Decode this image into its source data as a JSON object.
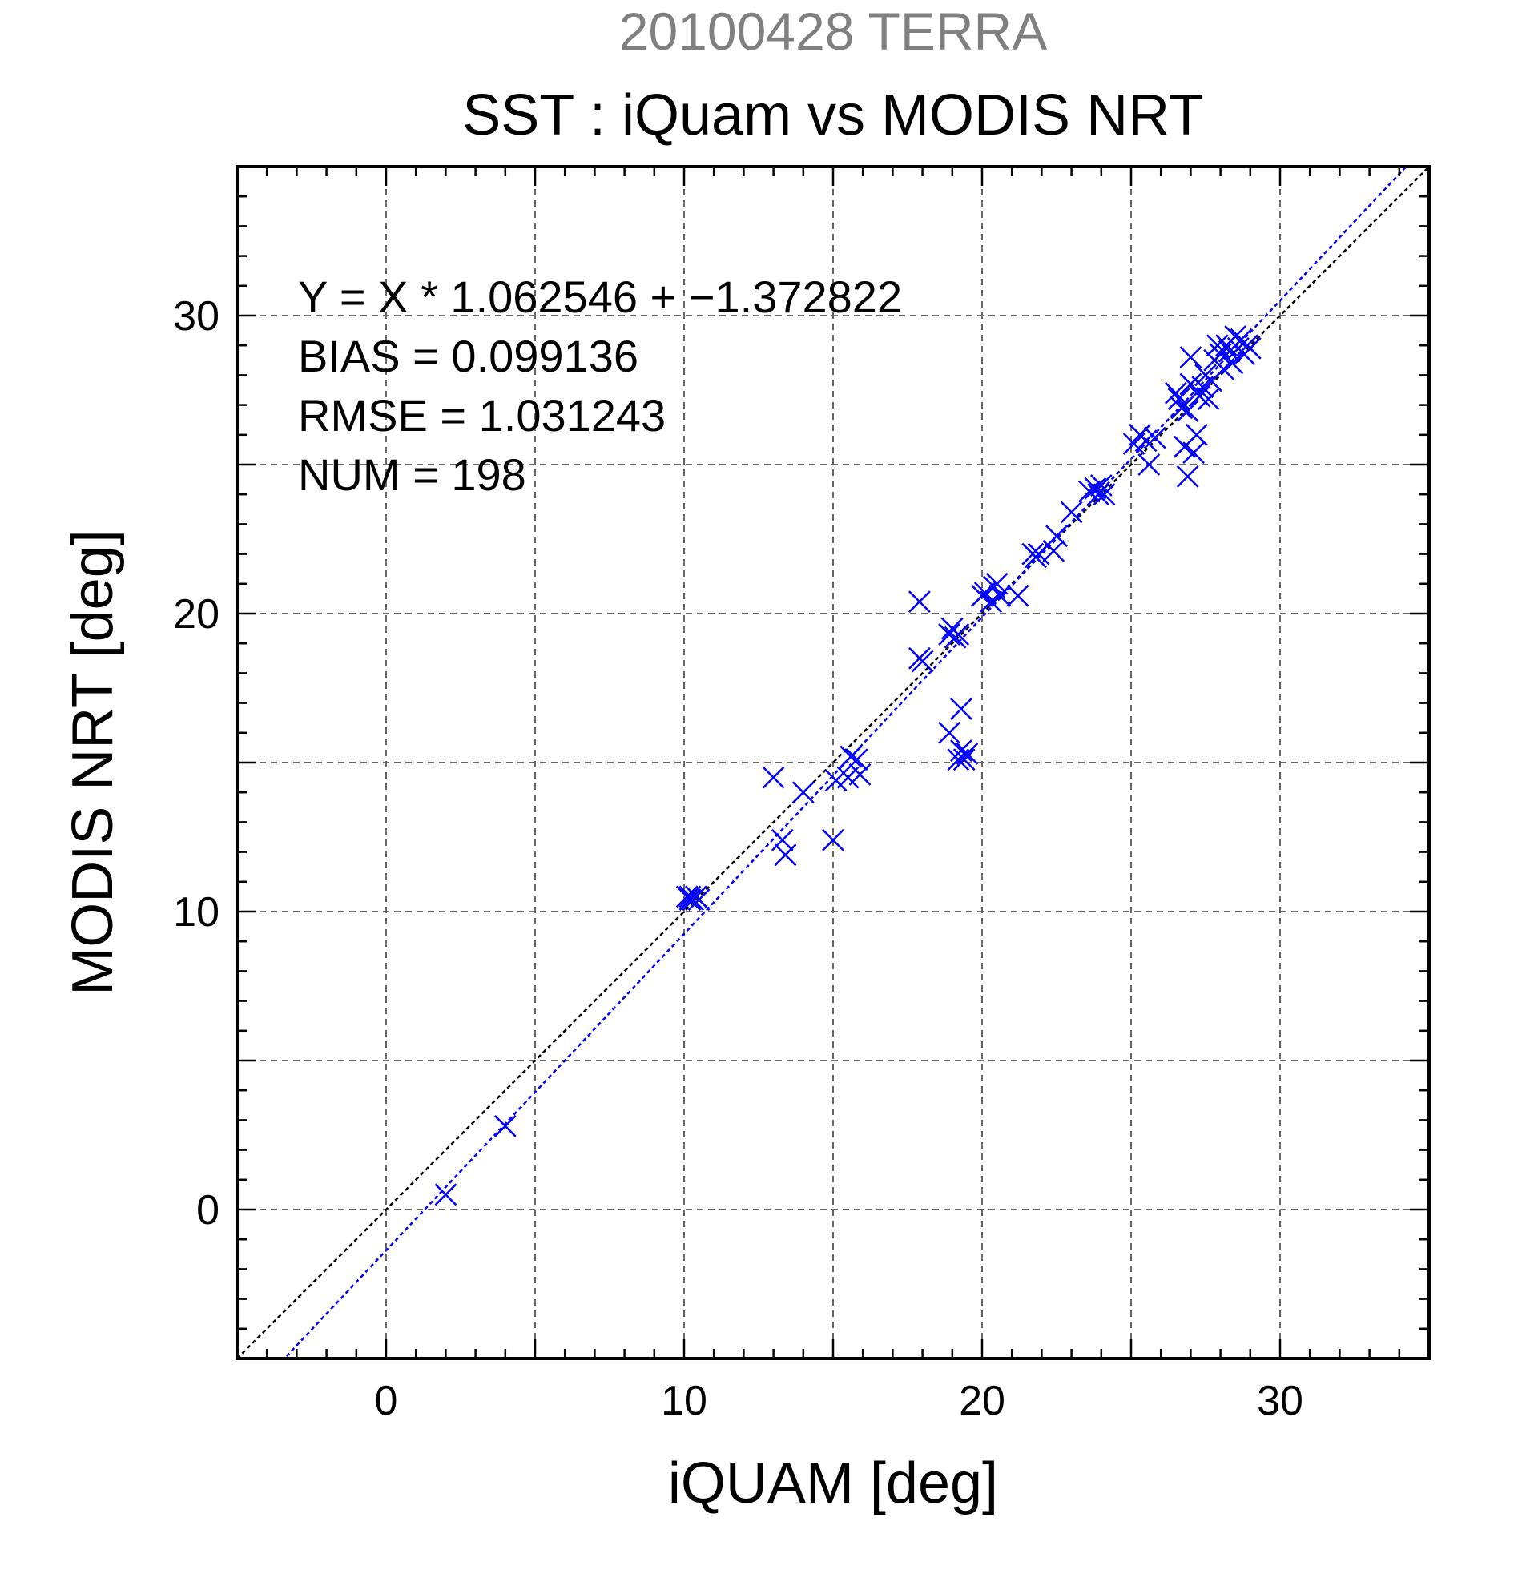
{
  "chart_data": {
    "type": "scatter",
    "title": "20100428 TERRA",
    "subtitle": "SST : iQuam vs MODIS NRT",
    "xlabel": "iQUAM [deg]",
    "ylabel": "MODIS NRT [deg]",
    "xlim": [
      -5,
      35
    ],
    "ylim": [
      -5,
      35
    ],
    "xticks": [
      0,
      10,
      20,
      30
    ],
    "yticks": [
      0,
      10,
      20,
      30
    ],
    "grid": true,
    "marker": "x",
    "point_color": "#0000ff",
    "fit_line_color": "#0000ff",
    "identity_line_color": "#000000",
    "stats": [
      "Y = X * 1.062546 + −1.372822",
      "BIAS = 0.099136",
      "RMSE = 1.031243",
      "NUM = 198"
    ],
    "fit": {
      "slope": 1.062546,
      "intercept": -1.372822
    },
    "points": [
      [
        2.0,
        0.5
      ],
      [
        4.0,
        2.8
      ],
      [
        10.1,
        10.5
      ],
      [
        10.2,
        10.5
      ],
      [
        10.3,
        10.4
      ],
      [
        10.4,
        10.5
      ],
      [
        10.5,
        10.4
      ],
      [
        10.2,
        10.4
      ],
      [
        13.0,
        14.5
      ],
      [
        13.3,
        12.4
      ],
      [
        13.4,
        11.9
      ],
      [
        14.0,
        14.0
      ],
      [
        15.0,
        12.4
      ],
      [
        15.1,
        14.4
      ],
      [
        15.5,
        14.5
      ],
      [
        15.6,
        15.2
      ],
      [
        15.8,
        15.1
      ],
      [
        15.9,
        14.6
      ],
      [
        17.9,
        20.4
      ],
      [
        17.9,
        18.5
      ],
      [
        18.0,
        18.4
      ],
      [
        18.9,
        16.0
      ],
      [
        18.9,
        19.3
      ],
      [
        19.0,
        19.5
      ],
      [
        19.1,
        19.2
      ],
      [
        19.2,
        15.1
      ],
      [
        19.2,
        19.3
      ],
      [
        19.3,
        16.8
      ],
      [
        19.3,
        15.4
      ],
      [
        19.4,
        15.1
      ],
      [
        19.5,
        15.3
      ],
      [
        20.0,
        20.6
      ],
      [
        20.1,
        20.7
      ],
      [
        20.3,
        20.4
      ],
      [
        20.4,
        20.9
      ],
      [
        20.5,
        21.0
      ],
      [
        20.6,
        20.6
      ],
      [
        21.2,
        20.6
      ],
      [
        21.7,
        22.0
      ],
      [
        21.8,
        21.9
      ],
      [
        21.9,
        22.0
      ],
      [
        22.4,
        22.1
      ],
      [
        22.5,
        22.6
      ],
      [
        23.0,
        23.4
      ],
      [
        23.6,
        24.1
      ],
      [
        23.8,
        24.2
      ],
      [
        23.9,
        24.0
      ],
      [
        24.0,
        24.3
      ],
      [
        24.1,
        24.0
      ],
      [
        25.1,
        25.7
      ],
      [
        25.3,
        26.0
      ],
      [
        25.5,
        25.8
      ],
      [
        25.6,
        25.0
      ],
      [
        25.8,
        25.9
      ],
      [
        26.5,
        27.4
      ],
      [
        26.6,
        27.2
      ],
      [
        26.7,
        26.9
      ],
      [
        26.8,
        25.6
      ],
      [
        26.9,
        24.6
      ],
      [
        26.9,
        26.8
      ],
      [
        27.0,
        28.6
      ],
      [
        27.0,
        27.7
      ],
      [
        27.1,
        25.4
      ],
      [
        27.2,
        26.0
      ],
      [
        27.3,
        27.3
      ],
      [
        27.4,
        27.6
      ],
      [
        27.5,
        28.0
      ],
      [
        27.6,
        27.2
      ],
      [
        27.7,
        27.8
      ],
      [
        27.8,
        28.5
      ],
      [
        27.9,
        29.0
      ],
      [
        28.0,
        28.7
      ],
      [
        28.1,
        28.2
      ],
      [
        28.2,
        29.0
      ],
      [
        28.3,
        28.8
      ],
      [
        28.4,
        28.4
      ],
      [
        28.5,
        29.3
      ],
      [
        28.6,
        28.9
      ],
      [
        28.7,
        29.2
      ],
      [
        28.8,
        28.7
      ],
      [
        28.9,
        29.0
      ],
      [
        29.0,
        28.9
      ]
    ]
  }
}
